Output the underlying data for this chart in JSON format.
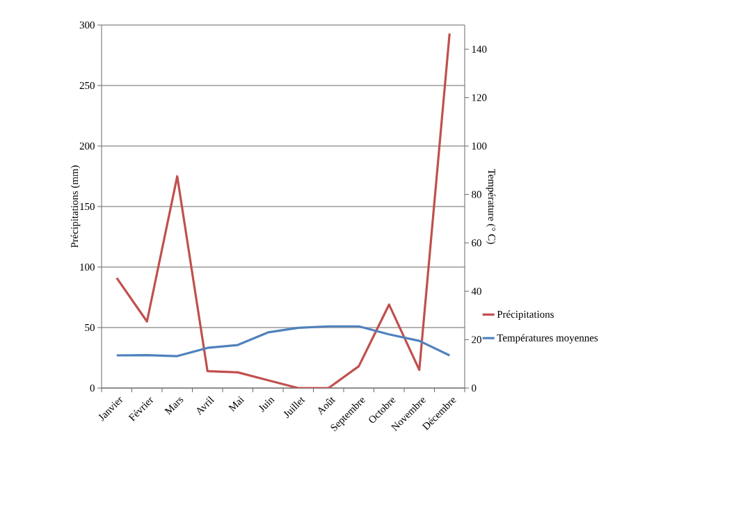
{
  "chart_data": {
    "type": "line",
    "ylabel": "Précipitations  (mm)",
    "y2label": "Température (° C)",
    "categories": [
      "Janvier",
      "Février",
      "Mars",
      "Avril",
      "Mai",
      "Juin",
      "Juillet",
      "Août",
      "Septembre",
      "Octobre",
      "Novembre",
      "Décembre"
    ],
    "series": [
      {
        "name": "Précipitations",
        "color": "#c0504d",
        "values": [
          91,
          55,
          175,
          14,
          13,
          6.5,
          0,
          0,
          18,
          69,
          15,
          293
        ]
      },
      {
        "name": "Températures moyennes",
        "color": "#4f81bd",
        "axis": "y2",
        "values": [
          13.5,
          13.6,
          13.2,
          16.6,
          17.8,
          23,
          24.9,
          25.5,
          25.5,
          22.2,
          19.5,
          13.5
        ]
      }
    ],
    "ylim": [
      0,
      300
    ],
    "yticks": [
      0,
      50,
      100,
      150,
      200,
      250,
      300
    ],
    "y2lim": [
      0,
      150
    ],
    "y2ticks": [
      0,
      20,
      40,
      60,
      80,
      100,
      120,
      140
    ],
    "grid": "y",
    "legend": "right",
    "marker": "none",
    "line_style": "solid"
  }
}
